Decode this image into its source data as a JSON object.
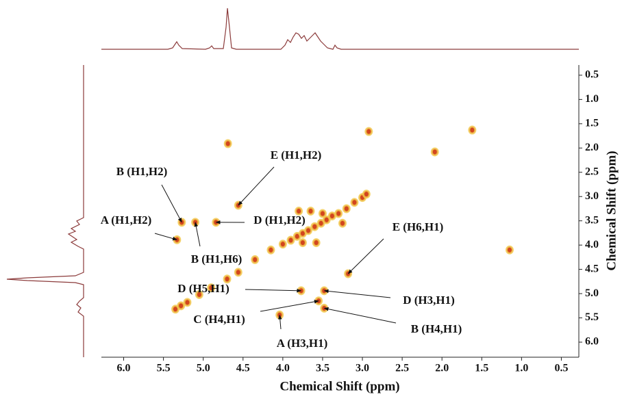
{
  "chart_data": {
    "type": "scatter",
    "x_label": "Chemical Shift (ppm)",
    "y_label": "Chemical Shift (ppm)",
    "xlim": [
      6.28,
      0.28
    ],
    "ylim": [
      0.29,
      6.31
    ],
    "xticks": [
      {
        "value": 6,
        "label": "6.0"
      },
      5.5,
      {
        "value": 5,
        "label": "5.0"
      },
      4.5,
      {
        "value": 4,
        "label": "4.0"
      },
      3.5,
      {
        "value": 3,
        "label": "3.0"
      },
      2.5,
      {
        "value": 2,
        "label": "2.0"
      },
      1.5,
      {
        "value": 1,
        "label": "1.0"
      },
      0.5
    ],
    "yticks": [
      0.5,
      {
        "value": 1,
        "label": "1.0"
      },
      1.5,
      {
        "value": 2,
        "label": "2.0"
      },
      2.5,
      {
        "value": 3,
        "label": "3.0"
      },
      3.5,
      {
        "value": 4,
        "label": "4.0"
      },
      4.5,
      {
        "value": 5,
        "label": "5.0"
      },
      5.5,
      {
        "value": 6,
        "label": "6.0"
      }
    ],
    "color": "#d2461e",
    "x": [
      5.35,
      5.28,
      5.2,
      5.05,
      4.9,
      4.7,
      4.56,
      4.35,
      4.15,
      4.0,
      3.9,
      3.82,
      3.75,
      3.68,
      3.6,
      3.52,
      3.45,
      3.38,
      3.3,
      3.2,
      3.1,
      3.0,
      2.95,
      3.8,
      3.65,
      3.5,
      3.25,
      3.75,
      3.58,
      4.56,
      5.27,
      5.1,
      4.84,
      5.33,
      3.18,
      3.77,
      3.48,
      3.55,
      3.48,
      4.04,
      4.69,
      2.92,
      2.09,
      1.62,
      1.15
    ],
    "values": [
      5.32,
      5.25,
      5.18,
      5.02,
      4.88,
      4.7,
      4.56,
      4.3,
      4.1,
      3.98,
      3.9,
      3.82,
      3.76,
      3.7,
      3.62,
      3.55,
      3.48,
      3.4,
      3.35,
      3.25,
      3.12,
      3.02,
      2.95,
      3.3,
      3.3,
      3.35,
      3.55,
      3.95,
      3.95,
      3.18,
      3.53,
      3.53,
      3.53,
      3.89,
      4.59,
      4.94,
      4.94,
      5.15,
      5.3,
      5.44,
      1.91,
      1.66,
      2.08,
      1.63,
      4.1
    ],
    "annotations": [
      {
        "text": "E (H1,H2)",
        "x": 4.56,
        "y": 3.18
      },
      {
        "text": "B (H1,H2)",
        "x": 5.27,
        "y": 3.53
      },
      {
        "text": "D (H1,H2)",
        "x": 4.84,
        "y": 3.53
      },
      {
        "text": "A (H1,H2)",
        "x": 5.33,
        "y": 3.89
      },
      {
        "text": "B (H1,H6)",
        "x": 5.1,
        "y": 3.53
      },
      {
        "text": "E (H6,H1)",
        "x": 3.18,
        "y": 4.59
      },
      {
        "text": "D (H5,H1)",
        "x": 3.77,
        "y": 4.94
      },
      {
        "text": "D (H3,H1)",
        "x": 3.48,
        "y": 4.94
      },
      {
        "text": "C (H4,H1)",
        "x": 3.55,
        "y": 5.15
      },
      {
        "text": "B (H4,H1)",
        "x": 3.48,
        "y": 5.3
      },
      {
        "text": "A (H3,H1)",
        "x": 4.04,
        "y": 5.44
      }
    ]
  }
}
